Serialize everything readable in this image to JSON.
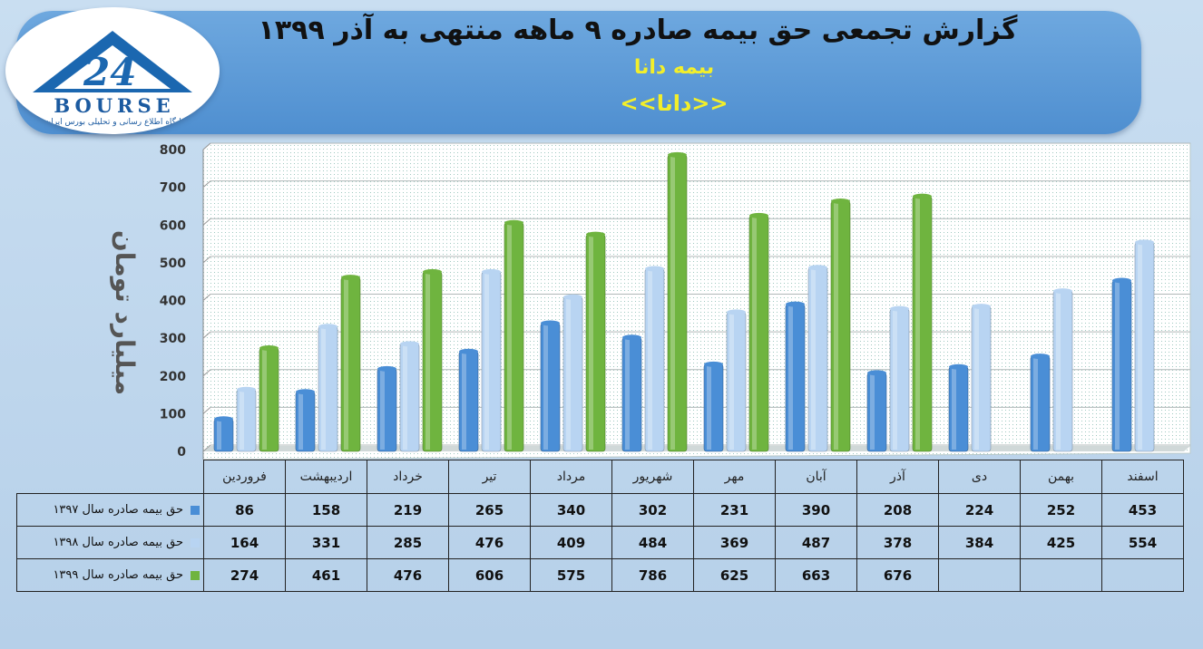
{
  "header": {
    "title": "گزارش تجمعی حق بیمه صادره ۹ ماهه منتهی به آذر ۱۳۹۹",
    "company": "بیمه دانا",
    "ticker": "<<دانا>>"
  },
  "logo": {
    "word": "BOURSE",
    "tagline": "پایگاه اطلاع رسانی و تحلیلی بورس ایران"
  },
  "colors": {
    "s1397": "#4a8ed6",
    "s1398": "#b8d4f2",
    "s1399": "#6fb43f"
  },
  "chart_data": {
    "type": "bar",
    "title": "گزارش تجمعی حق بیمه صادره ۹ ماهه منتهی به آذر ۱۳۹۹",
    "ylabel": "میلیارد تومان",
    "ylim": [
      0,
      800
    ],
    "yticks": [
      0,
      100,
      200,
      300,
      400,
      500,
      600,
      700,
      800
    ],
    "grid": true,
    "categories": [
      "فروردین",
      "اردیبهشت",
      "خرداد",
      "تیر",
      "مرداد",
      "شهریور",
      "مهر",
      "آبان",
      "آذر",
      "دی",
      "بهمن",
      "اسفند"
    ],
    "series": [
      {
        "name": "حق بیمه صادره سال ۱۳۹۷",
        "values": [
          86,
          158,
          219,
          265,
          340,
          302,
          231,
          390,
          208,
          224,
          252,
          453
        ]
      },
      {
        "name": "حق بیمه صادره سال ۱۳۹۸",
        "values": [
          164,
          331,
          285,
          476,
          409,
          484,
          369,
          487,
          378,
          384,
          425,
          554
        ]
      },
      {
        "name": "حق بیمه صادره سال ۱۳۹۹",
        "values": [
          274,
          461,
          476,
          606,
          575,
          786,
          625,
          663,
          676,
          null,
          null,
          null
        ]
      }
    ]
  }
}
